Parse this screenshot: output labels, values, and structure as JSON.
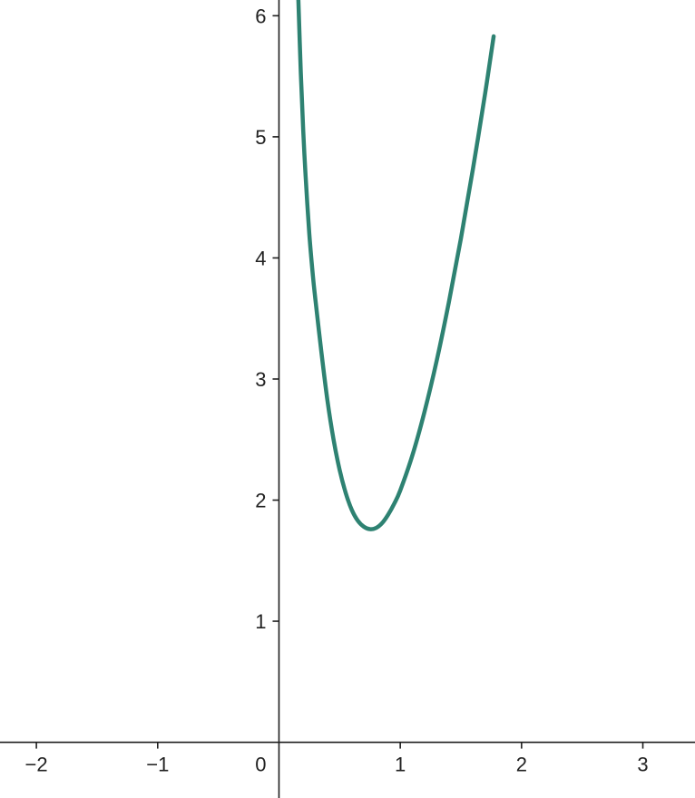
{
  "chart_data": {
    "type": "line",
    "title": "",
    "xlabel": "",
    "ylabel": "",
    "xlim": [
      -2.3,
      3.43
    ],
    "ylim": [
      -0.46,
      6.13
    ],
    "grid": false,
    "origin_label": "0",
    "x_ticks": [
      {
        "value": -2,
        "label": "−2"
      },
      {
        "value": -1,
        "label": "−1"
      },
      {
        "value": 1,
        "label": "1"
      },
      {
        "value": 2,
        "label": "2"
      },
      {
        "value": 3,
        "label": "3"
      }
    ],
    "y_ticks": [
      {
        "value": 1,
        "label": "1"
      },
      {
        "value": 2,
        "label": "2"
      },
      {
        "value": 3,
        "label": "3"
      },
      {
        "value": 4,
        "label": "4"
      },
      {
        "value": 5,
        "label": "5"
      },
      {
        "value": 6,
        "label": "6"
      }
    ],
    "series": [
      {
        "color": "#2e8272",
        "x": [
          0.16,
          0.18,
          0.2,
          0.22,
          0.25,
          0.28,
          0.3,
          0.35,
          0.4,
          0.45,
          0.5,
          0.55,
          0.6,
          0.65,
          0.7,
          0.75,
          0.8,
          0.85,
          0.9,
          0.95,
          1.0,
          1.1,
          1.2,
          1.3,
          1.4,
          1.5,
          1.6,
          1.7,
          1.77
        ],
        "y": [
          6.13,
          5.53,
          5.05,
          4.67,
          4.2,
          3.85,
          3.66,
          3.22,
          2.82,
          2.5,
          2.25,
          2.06,
          1.92,
          1.83,
          1.78,
          1.76,
          1.77,
          1.81,
          1.88,
          1.97,
          2.08,
          2.37,
          2.73,
          3.15,
          3.63,
          4.16,
          4.74,
          5.36,
          5.83
        ]
      }
    ]
  }
}
